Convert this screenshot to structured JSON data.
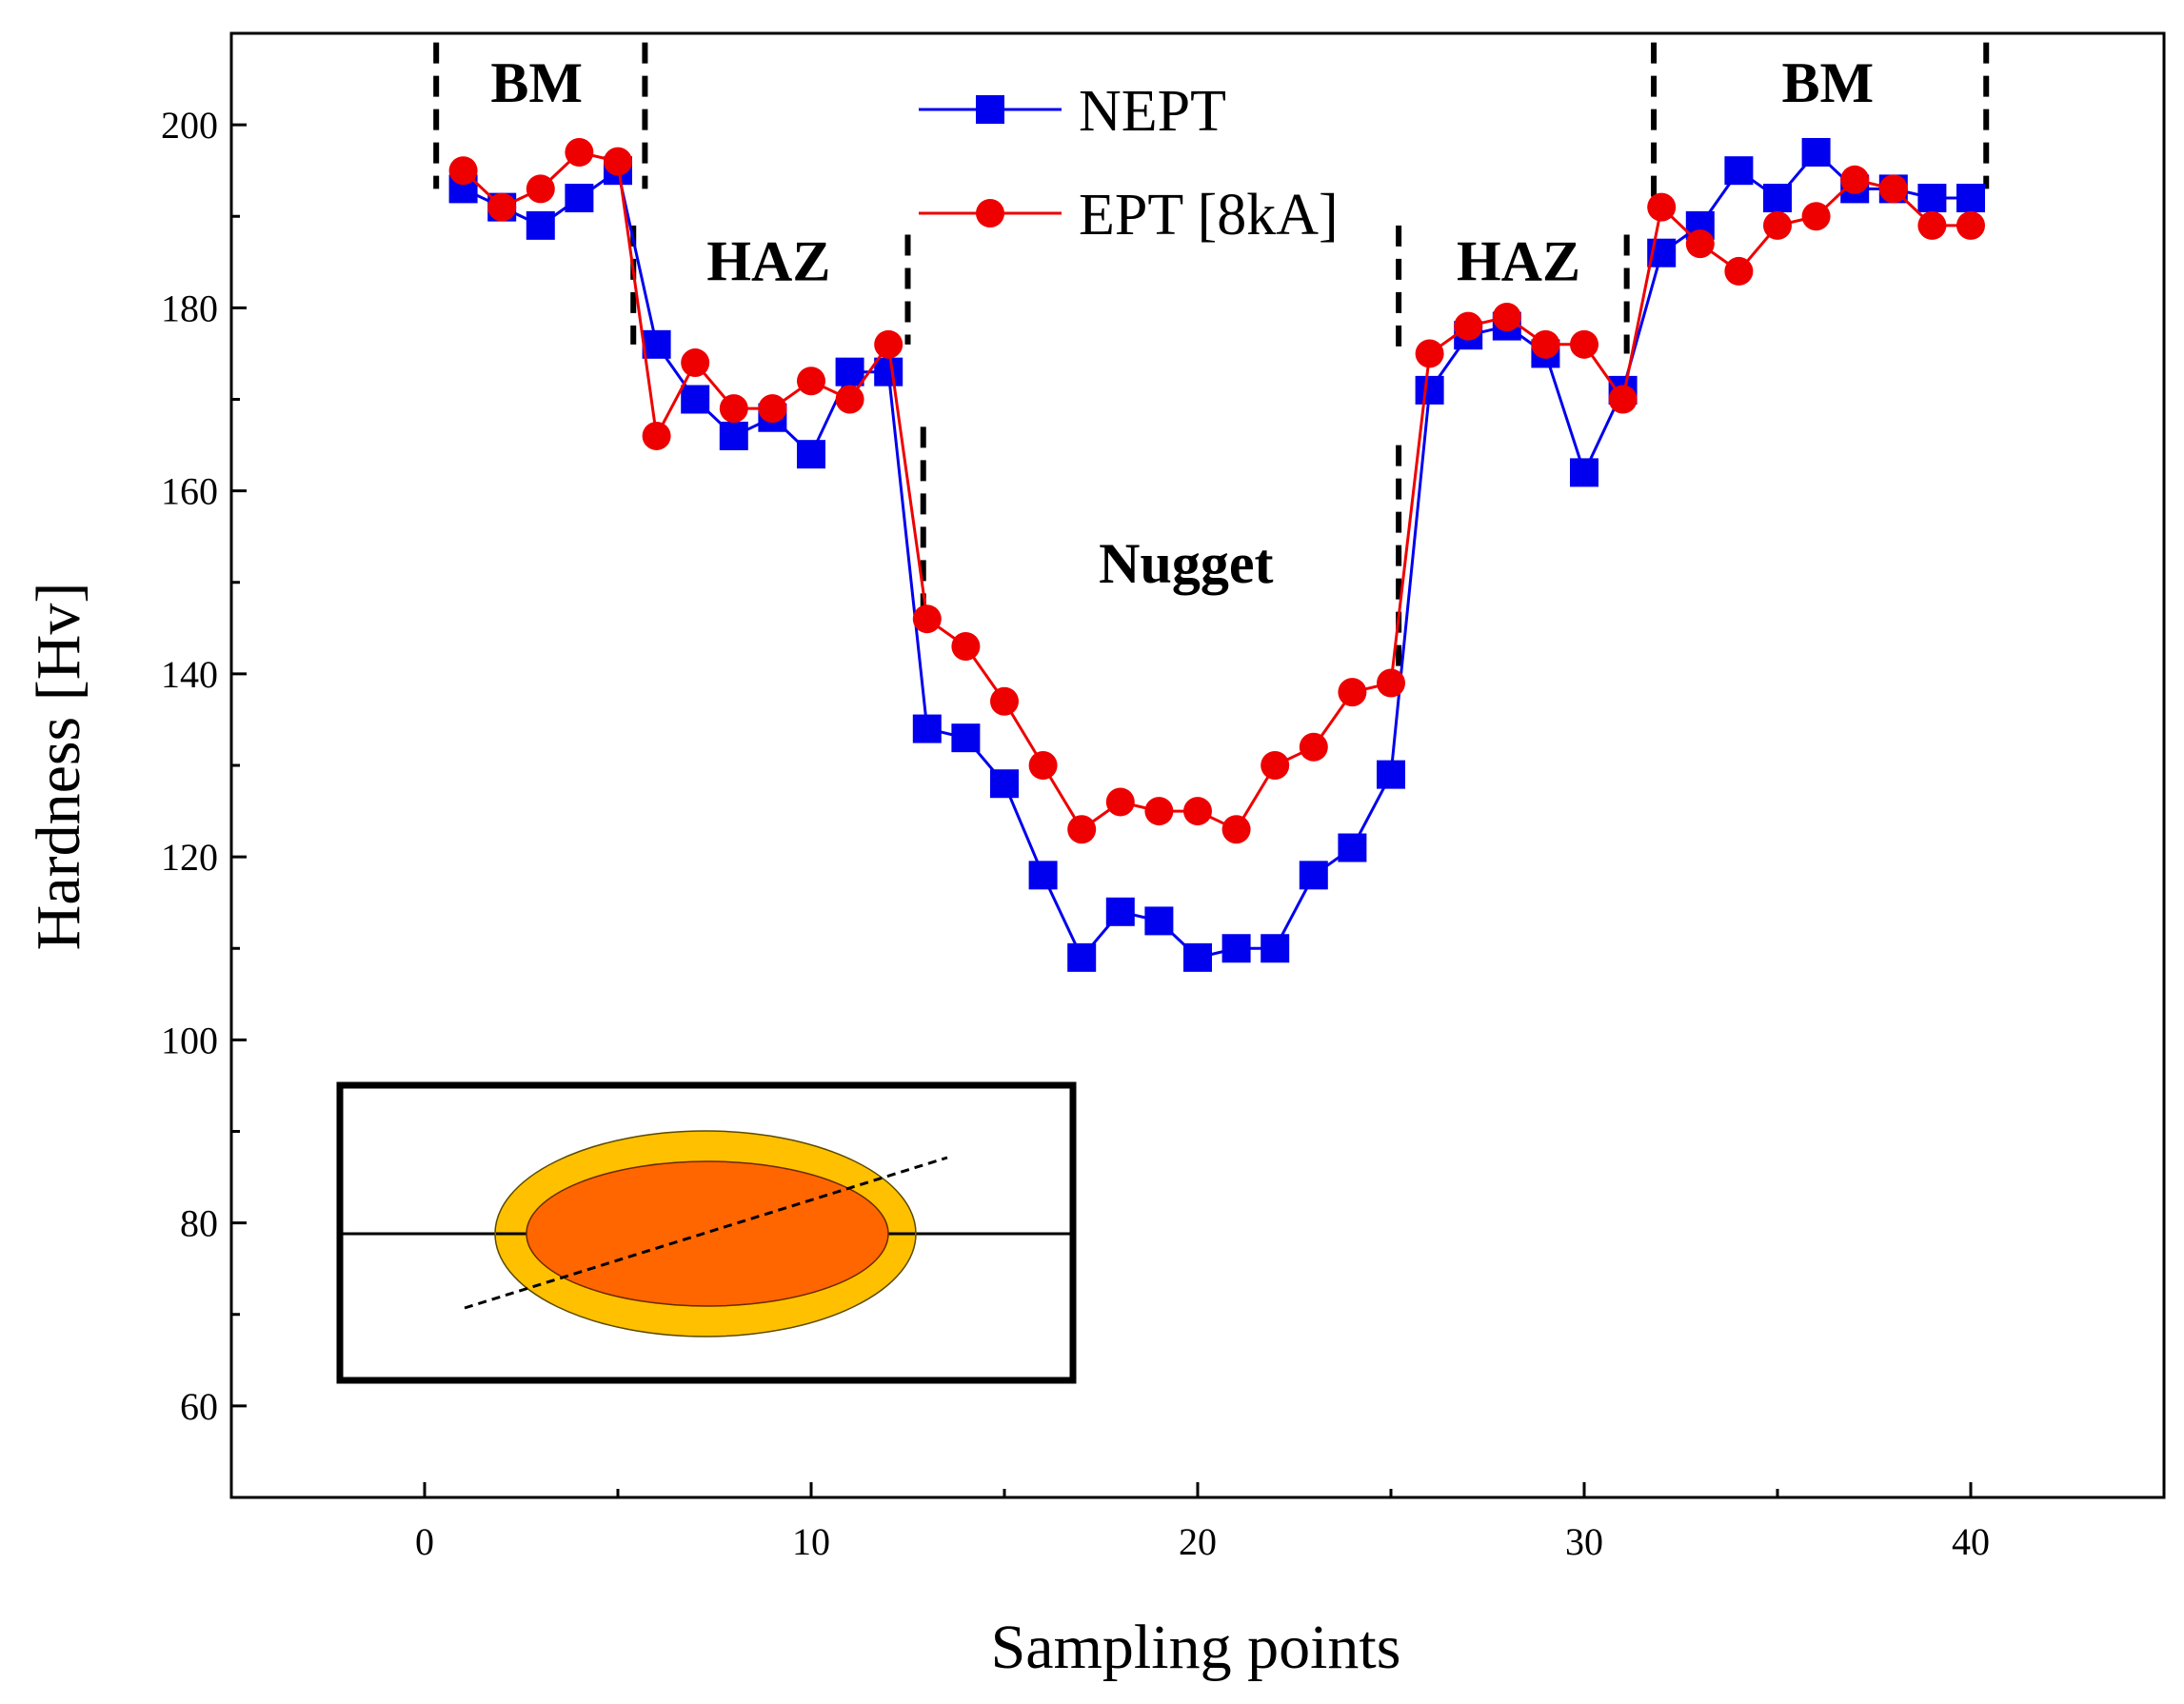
{
  "chart_data": {
    "type": "line",
    "title": "",
    "xlabel": "Sampling points",
    "ylabel": "Hardness [Hv]",
    "xlim": [
      -5,
      45
    ],
    "ylim": [
      50,
      210
    ],
    "xticks": [
      0,
      10,
      20,
      30,
      40
    ],
    "yticks": [
      60,
      80,
      100,
      120,
      140,
      160,
      180,
      200
    ],
    "legend_position": "top-center",
    "series": [
      {
        "name": "NEPT",
        "color": "#0000ee",
        "marker": "square",
        "x": [
          1,
          2,
          3,
          4,
          5,
          6,
          7,
          8,
          9,
          10,
          11,
          12,
          13,
          14,
          15,
          16,
          17,
          18,
          19,
          20,
          21,
          22,
          23,
          24,
          25,
          26,
          27,
          28,
          29,
          30,
          31,
          32,
          33,
          34,
          35,
          36,
          37,
          38,
          39,
          40
        ],
        "y": [
          193,
          191,
          189,
          192,
          195,
          176,
          170,
          166,
          168,
          164,
          173,
          173,
          134,
          133,
          128,
          118,
          109,
          114,
          113,
          109,
          110,
          110,
          118,
          121,
          129,
          171,
          177,
          178,
          175,
          162,
          171,
          186,
          189,
          195,
          192,
          197,
          193,
          193,
          192,
          192
        ]
      },
      {
        "name": "EPT [8kA]",
        "color": "#ee0000",
        "marker": "circle",
        "x": [
          1,
          2,
          3,
          4,
          5,
          6,
          7,
          8,
          9,
          10,
          11,
          12,
          13,
          14,
          15,
          16,
          17,
          18,
          19,
          20,
          21,
          22,
          23,
          24,
          25,
          26,
          27,
          28,
          29,
          30,
          31,
          32,
          33,
          34,
          35,
          36,
          37,
          38,
          39,
          40
        ],
        "y": [
          195,
          191,
          193,
          197,
          196,
          166,
          174,
          169,
          169,
          172,
          170,
          176,
          146,
          143,
          137,
          130,
          123,
          126,
          125,
          125,
          123,
          130,
          132,
          138,
          139,
          175,
          178,
          179,
          176,
          176,
          170,
          191,
          187,
          184,
          189,
          190,
          194,
          193,
          189,
          189
        ]
      }
    ],
    "regions": [
      {
        "label": "BM",
        "x_start": 0.3,
        "x_end": 5.7
      },
      {
        "label": "HAZ",
        "x_start": 5.7,
        "x_end": 12.5
      },
      {
        "label": "Nugget",
        "x_start": 12.9,
        "x_end": 25.3
      },
      {
        "label": "HAZ",
        "x_start": 25.3,
        "x_end": 31.1
      },
      {
        "label": "BM",
        "x_start": 31.8,
        "x_end": 40.5
      }
    ]
  },
  "colors": {
    "haz_zone": "#ffc000",
    "nugget_zone": "#ff6600"
  }
}
